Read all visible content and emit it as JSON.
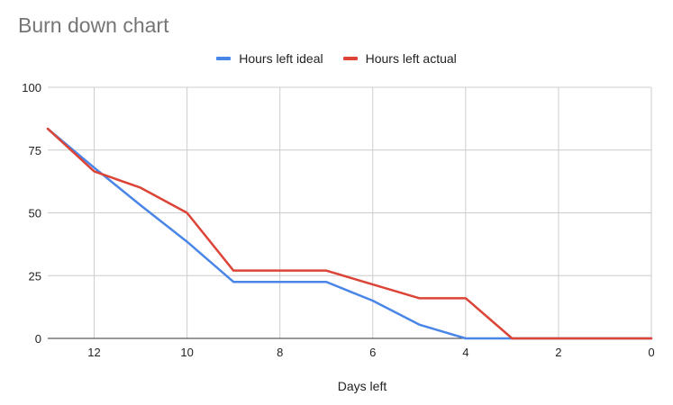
{
  "chart_data": {
    "type": "line",
    "title": "Burn down chart",
    "xlabel": "Days left",
    "ylabel": "",
    "x": [
      13,
      12,
      11,
      10,
      9,
      8,
      7,
      6,
      5,
      4,
      3,
      2,
      1,
      0
    ],
    "xlim": [
      13,
      0
    ],
    "ylim": [
      0,
      100
    ],
    "x_ticks": [
      12,
      10,
      8,
      6,
      4,
      2,
      0
    ],
    "y_ticks": [
      0,
      25,
      50,
      75,
      100
    ],
    "grid": true,
    "legend_position": "top",
    "series": [
      {
        "name": "Hours left ideal",
        "color": "#4a86e8",
        "values": [
          83.5,
          68,
          53,
          38.5,
          22.5,
          22.5,
          22.5,
          15,
          5.5,
          0,
          0,
          0,
          0,
          0
        ]
      },
      {
        "name": "Hours left actual",
        "color": "#db4437",
        "values": [
          83.5,
          66.5,
          60,
          50,
          27,
          27,
          27,
          21.5,
          16,
          16,
          0,
          0,
          0,
          0
        ]
      }
    ]
  }
}
